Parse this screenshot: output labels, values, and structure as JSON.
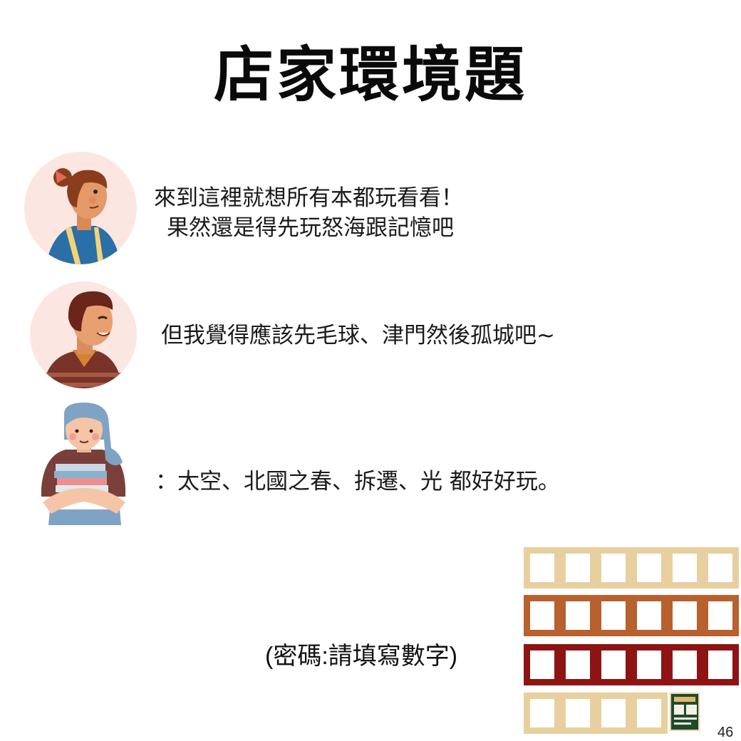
{
  "title": "店家環境題",
  "dialogue": [
    {
      "speaker_icon": "woman-with-apron-avatar",
      "lines": [
        "來到這裡就想所有本都玩看看！",
        "果然還是得先玩怒海跟記憶吧"
      ]
    },
    {
      "speaker_icon": "smiling-man-avatar",
      "lines": [
        "但我覺得應該先毛球、津門然後孤城吧~"
      ]
    },
    {
      "speaker_icon": "girl-holding-books-avatar",
      "lines": [
        "：太空、北國之春、拆遷、光 都好好玩。"
      ]
    }
  ],
  "password_hint": "(密碼:請填寫數字)",
  "answer_grid": {
    "rows": [
      {
        "color": "#e8cf9f",
        "count": 6
      },
      {
        "color": "#b8602e",
        "count": 6
      },
      {
        "color": "#8e1414",
        "count": 6
      },
      {
        "color": "#e8cf9f",
        "count": 4
      }
    ],
    "thumbnail_icon": "promo-card-thumbnail-icon"
  },
  "page_number": "46"
}
